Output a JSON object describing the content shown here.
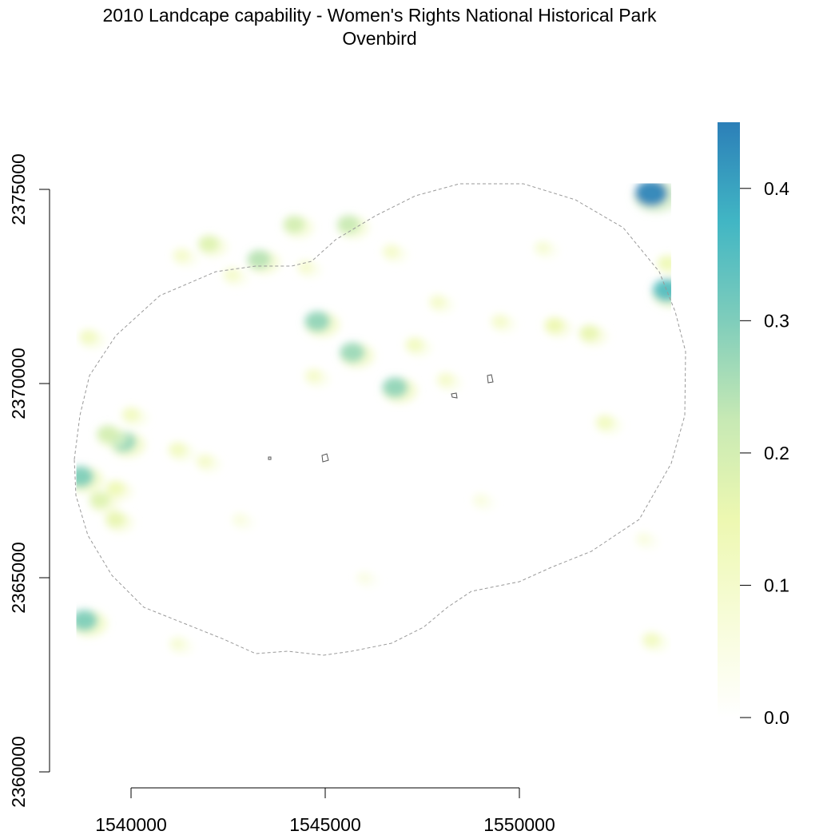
{
  "title": "2010 Landcape capability - Women's Rights National Historical Park",
  "subtitle": "Ovenbird",
  "chart_data": {
    "type": "heatmap",
    "title": "2010 Landcape capability - Women's Rights National Historical Park",
    "subtitle": "Ovenbird",
    "x_axis": {
      "ticks": [
        1540000,
        1545000,
        1550000
      ],
      "tick_labels": [
        "1540000",
        "1545000",
        "1550000"
      ]
    },
    "y_axis": {
      "ticks": [
        2360000,
        2365000,
        2370000,
        2375000
      ],
      "tick_labels": [
        "2360000",
        "2365000",
        "2370000",
        "2375000"
      ]
    },
    "raster_extent": {
      "xmin": 1538600,
      "xmax": 1553900,
      "ymin": 2362950,
      "ymax": 2375150
    },
    "legend": {
      "type": "continuous colorbar",
      "placement": "right",
      "ticks": [
        0.0,
        0.1,
        0.2,
        0.3,
        0.4
      ],
      "tick_labels": [
        "0.0",
        "0.1",
        "0.2",
        "0.3",
        "0.4"
      ],
      "range": [
        0.0,
        0.45
      ],
      "colors": [
        "#ffffff",
        "#f7fcd8",
        "#edf8b1",
        "#c7e9b4",
        "#7fcdbb",
        "#41b6c4",
        "#2c7fb8"
      ]
    },
    "boundary": {
      "style": "dashed",
      "color": "#999999"
    },
    "hotspots": [
      {
        "x": 1553400,
        "y": 2374900,
        "value": 0.44
      },
      {
        "x": 1553800,
        "y": 2372400,
        "value": 0.35
      },
      {
        "x": 1538700,
        "y": 2367600,
        "value": 0.3
      },
      {
        "x": 1539800,
        "y": 2368500,
        "value": 0.28
      },
      {
        "x": 1538800,
        "y": 2363900,
        "value": 0.3
      },
      {
        "x": 1544800,
        "y": 2371600,
        "value": 0.28
      },
      {
        "x": 1545700,
        "y": 2370800,
        "value": 0.27
      },
      {
        "x": 1546800,
        "y": 2369900,
        "value": 0.28
      },
      {
        "x": 1543300,
        "y": 2373200,
        "value": 0.24
      },
      {
        "x": 1542000,
        "y": 2373600,
        "value": 0.18
      },
      {
        "x": 1544200,
        "y": 2374100,
        "value": 0.2
      },
      {
        "x": 1545600,
        "y": 2374100,
        "value": 0.22
      },
      {
        "x": 1539400,
        "y": 2368700,
        "value": 0.2
      },
      {
        "x": 1539200,
        "y": 2367000,
        "value": 0.18
      },
      {
        "x": 1539600,
        "y": 2366500,
        "value": 0.16
      },
      {
        "x": 1538900,
        "y": 2371200,
        "value": 0.12
      },
      {
        "x": 1550900,
        "y": 2371500,
        "value": 0.15
      },
      {
        "x": 1551800,
        "y": 2371300,
        "value": 0.16
      },
      {
        "x": 1553800,
        "y": 2373100,
        "value": 0.14
      },
      {
        "x": 1547300,
        "y": 2371000,
        "value": 0.12
      },
      {
        "x": 1544700,
        "y": 2370200,
        "value": 0.1
      },
      {
        "x": 1542600,
        "y": 2372800,
        "value": 0.1
      },
      {
        "x": 1541300,
        "y": 2373300,
        "value": 0.1
      },
      {
        "x": 1541200,
        "y": 2368300,
        "value": 0.12
      },
      {
        "x": 1541900,
        "y": 2368000,
        "value": 0.1
      },
      {
        "x": 1539600,
        "y": 2367300,
        "value": 0.14
      },
      {
        "x": 1540000,
        "y": 2369200,
        "value": 0.12
      },
      {
        "x": 1548100,
        "y": 2370100,
        "value": 0.1
      },
      {
        "x": 1549500,
        "y": 2371600,
        "value": 0.1
      },
      {
        "x": 1546700,
        "y": 2373400,
        "value": 0.1
      },
      {
        "x": 1547900,
        "y": 2372100,
        "value": 0.1
      },
      {
        "x": 1552200,
        "y": 2369000,
        "value": 0.12
      },
      {
        "x": 1553400,
        "y": 2363400,
        "value": 0.12
      },
      {
        "x": 1541200,
        "y": 2363300,
        "value": 0.08
      },
      {
        "x": 1549000,
        "y": 2367000,
        "value": 0.06
      },
      {
        "x": 1553200,
        "y": 2366000,
        "value": 0.06
      },
      {
        "x": 1542800,
        "y": 2366500,
        "value": 0.06
      },
      {
        "x": 1546000,
        "y": 2365000,
        "value": 0.05
      },
      {
        "x": 1550600,
        "y": 2373500,
        "value": 0.08
      },
      {
        "x": 1544500,
        "y": 2373000,
        "value": 0.09
      }
    ]
  }
}
